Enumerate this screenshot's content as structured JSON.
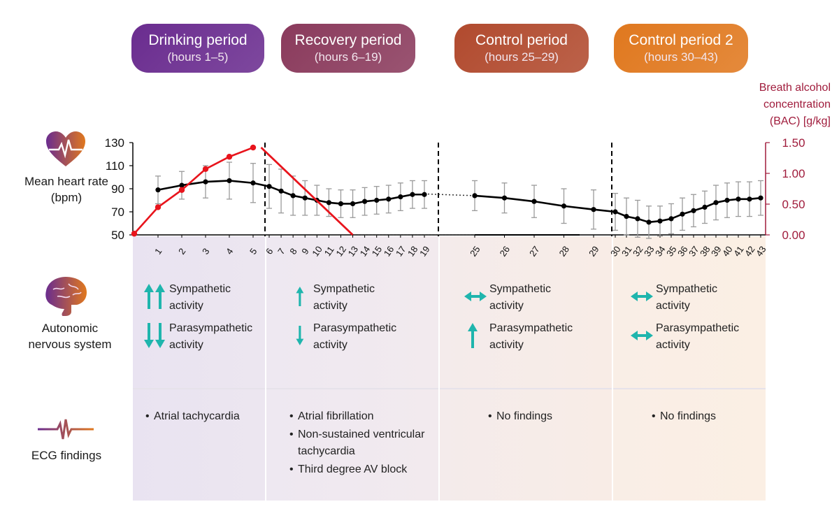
{
  "periods": [
    {
      "title": "Drinking period",
      "subtitle": "(hours 1–5)",
      "color": "#6a2c8f"
    },
    {
      "title": "Recovery period",
      "subtitle": "(hours 6–19)",
      "color": "#8a3a5c"
    },
    {
      "title": "Control period",
      "subtitle": "(hours 25–29)",
      "color": "#b14a2e"
    },
    {
      "title": "Control period 2",
      "subtitle": "(hours 30–43)",
      "color": "#e0781e"
    }
  ],
  "row_labels": {
    "heart_rate": "Mean heart rate (bpm)",
    "ans": "Autonomic nervous system",
    "ecg": "ECG findings"
  },
  "bac_axis_title": [
    "Breath alcohol",
    "concentration",
    "(BAC) [g/kg]"
  ],
  "ans": [
    {
      "sym_label": "Sympathetic activity",
      "para_label": "Parasympathetic activity",
      "sym_icon": "double-up-arrow",
      "para_icon": "double-down-arrow"
    },
    {
      "sym_label": "Sympathetic activity",
      "para_label": "Parasympathetic activity",
      "sym_icon": "up-arrow",
      "para_icon": "down-arrow"
    },
    {
      "sym_label": "Sympathetic activity",
      "para_label": "Parasympathetic activity",
      "sym_icon": "left-right-arrow",
      "para_icon": "up-arrow"
    },
    {
      "sym_label": "Sympathetic activity",
      "para_label": "Parasympathetic activity",
      "sym_icon": "left-right-arrow",
      "para_icon": "left-right-arrow"
    }
  ],
  "ecg": [
    {
      "findings": [
        "Atrial tachycardia"
      ]
    },
    {
      "findings": [
        "Atrial fibrillation",
        "Non-sustained ventricular tachycardia",
        "Third degree AV block"
      ]
    },
    {
      "findings": [
        "No findings"
      ]
    },
    {
      "findings": [
        "No findings"
      ]
    }
  ],
  "colors": {
    "hr_line": "#000000",
    "bac_line": "#e8141c",
    "bac_axis": "#a01c3c",
    "arrow": "#1fb5ad",
    "errorbar": "#9a9a9a"
  },
  "chart_data": {
    "type": "line",
    "x_ticks": [
      1,
      2,
      3,
      4,
      5,
      6,
      7,
      8,
      9,
      10,
      11,
      12,
      13,
      14,
      15,
      16,
      17,
      18,
      19,
      25,
      26,
      27,
      28,
      29,
      30,
      31,
      32,
      33,
      34,
      35,
      36,
      37,
      38,
      39,
      40,
      41,
      42,
      43
    ],
    "y_left": {
      "label": "Mean heart rate (bpm)",
      "ticks": [
        50,
        70,
        90,
        110,
        130
      ],
      "range": [
        50,
        130
      ]
    },
    "y_right": {
      "label": "Breath alcohol concentration (BAC) [g/kg]",
      "ticks": [
        "0.00",
        "0.50",
        "1.00",
        "1.50"
      ],
      "range": [
        0,
        1.5
      ]
    },
    "series": [
      {
        "name": "Mean heart rate",
        "axis": "left",
        "x": [
          1,
          2,
          3,
          4,
          5,
          6,
          7,
          8,
          9,
          10,
          11,
          12,
          13,
          14,
          15,
          16,
          17,
          18,
          19,
          25,
          26,
          27,
          28,
          29,
          30,
          31,
          32,
          33,
          34,
          35,
          36,
          37,
          38,
          39,
          40,
          41,
          42,
          43
        ],
        "y": [
          89,
          93,
          96,
          97,
          95,
          92,
          88,
          84,
          82,
          80,
          78,
          77,
          77,
          79,
          80,
          81,
          83,
          85,
          85,
          84,
          82,
          79,
          75,
          72,
          70,
          66,
          64,
          61,
          62,
          64,
          68,
          71,
          74,
          78,
          80,
          81,
          81,
          82
        ],
        "err": [
          12,
          12,
          14,
          16,
          17,
          19,
          19,
          17,
          15,
          13,
          12,
          12,
          12,
          12,
          12,
          12,
          12,
          12,
          12,
          13,
          13,
          14,
          15,
          17,
          16,
          16,
          16,
          14,
          13,
          13,
          14,
          14,
          14,
          15,
          15,
          15,
          15,
          15
        ]
      },
      {
        "name": "BAC",
        "axis": "right",
        "x": [
          0,
          1,
          2,
          3,
          4,
          5,
          5.5,
          13
        ],
        "y": [
          0.02,
          0.45,
          0.73,
          1.07,
          1.27,
          1.42,
          1.42,
          0.0
        ]
      }
    ],
    "period_dividers_after": [
      5,
      19,
      29
    ]
  }
}
